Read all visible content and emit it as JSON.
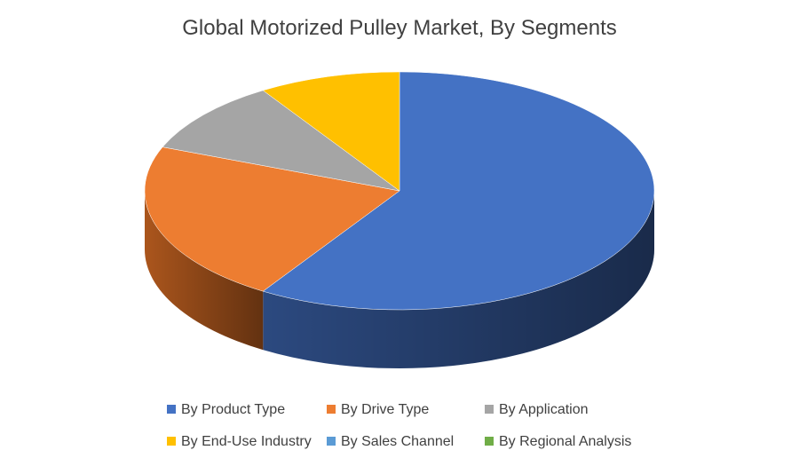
{
  "chart_data": {
    "type": "pie",
    "title": "Global Motorized Pulley Market, By Segments",
    "series": [
      {
        "name": "By Product Type",
        "value": 59,
        "color": "#4472C4",
        "side_color": "#2E4D86"
      },
      {
        "name": "By Drive Type",
        "value": 22,
        "color": "#ED7D31",
        "side_color": "#B45A1E"
      },
      {
        "name": "By Application",
        "value": 10,
        "color": "#A5A5A5",
        "side_color": "#7A7A7A"
      },
      {
        "name": "By End-Use Industry",
        "value": 9,
        "color": "#FFC000",
        "side_color": "#C79600"
      },
      {
        "name": "By Sales Channel",
        "value": 0,
        "color": "#5B9BD5",
        "side_color": "#3E74A8"
      },
      {
        "name": "By Regional Analysis",
        "value": 0,
        "color": "#70AD47",
        "side_color": "#4F8030"
      }
    ],
    "legend_position": "bottom"
  }
}
